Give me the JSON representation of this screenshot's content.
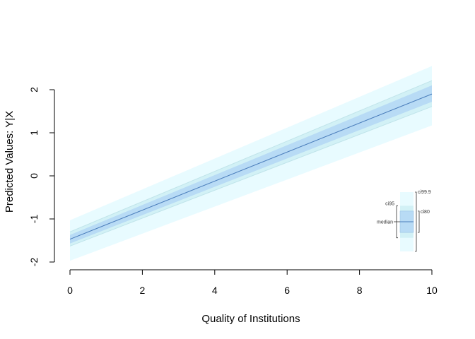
{
  "chart_data": {
    "type": "line",
    "xlabel": "Quality of Institutions",
    "ylabel": "Predicted Values: Y|X",
    "xlim": [
      0,
      10
    ],
    "ylim": [
      -2,
      2
    ],
    "x_ticks": [
      "0",
      "2",
      "4",
      "6",
      "8",
      "10"
    ],
    "y_ticks": [
      "-2",
      "-1",
      "0",
      "1",
      "2"
    ],
    "grid": false,
    "x": [
      0,
      10
    ],
    "median": [
      -1.47,
      1.9
    ],
    "ci80": {
      "lower": [
        -1.57,
        1.72
      ],
      "upper": [
        -1.37,
        2.1
      ]
    },
    "ci95": {
      "lower": [
        -1.63,
        1.61
      ],
      "upper": [
        -1.3,
        2.21
      ]
    },
    "ci999": {
      "lower": [
        -1.97,
        1.17
      ],
      "upper": [
        -1.03,
        2.55
      ]
    },
    "colors": {
      "ci999": "#e8fbff",
      "ci95": "#d2f1f6",
      "ci80": "#b8dbf5",
      "median": "#4a7dbb",
      "ci95_edge": "#c0e4ea"
    },
    "legend": {
      "placement": "bottom-right",
      "labels": {
        "ci999": "ci99.9",
        "ci95": "ci95",
        "ci80": "ci80",
        "median": "median"
      }
    }
  }
}
